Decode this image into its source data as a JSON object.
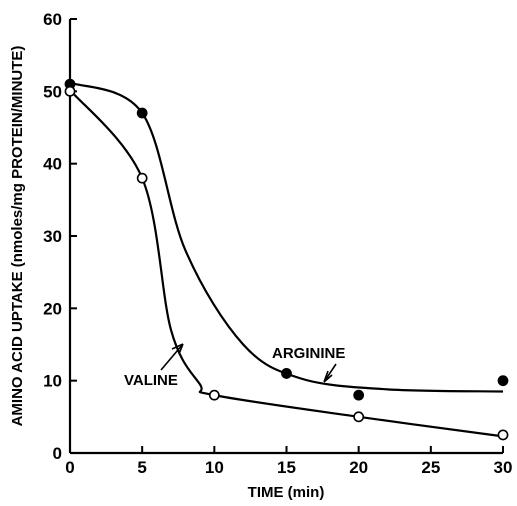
{
  "chart_data": {
    "type": "line",
    "xlabel": "TIME (min)",
    "ylabel": "AMINO ACID UPTAKE (nmoles/mg PROTEIN/MINUTE)",
    "xlim": [
      0,
      30
    ],
    "ylim": [
      0,
      60
    ],
    "xticks": [
      "0",
      "5",
      "10",
      "15",
      "20",
      "25",
      "30"
    ],
    "yticks": [
      "0",
      "10",
      "20",
      "30",
      "40",
      "50",
      "60"
    ],
    "grid": false,
    "series": [
      {
        "name": "ARGININE",
        "marker": "filled-circle",
        "x": [
          0,
          5,
          15,
          20,
          30
        ],
        "y": [
          51,
          47,
          11,
          8,
          10
        ]
      },
      {
        "name": "VALINE",
        "marker": "open-circle",
        "x": [
          0,
          5,
          10,
          20,
          30
        ],
        "y": [
          50,
          38,
          8,
          5,
          2.5
        ]
      }
    ]
  }
}
